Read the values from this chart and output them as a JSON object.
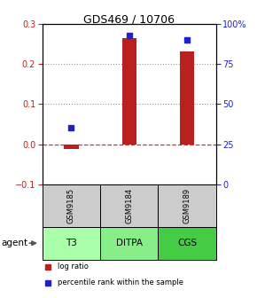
{
  "title": "GDS469 / 10706",
  "samples": [
    "GSM9185",
    "GSM9184",
    "GSM9189"
  ],
  "agents": [
    "T3",
    "DITPA",
    "CGS"
  ],
  "log_ratios": [
    -0.012,
    0.265,
    0.232
  ],
  "percentile_ranks_pct": [
    35,
    93,
    90
  ],
  "ylim_left": [
    -0.1,
    0.3
  ],
  "ylim_right": [
    0,
    100
  ],
  "yticks_left": [
    -0.1,
    0.0,
    0.1,
    0.2,
    0.3
  ],
  "yticks_right": [
    0,
    25,
    50,
    75,
    100
  ],
  "ytick_labels_right": [
    "0",
    "25",
    "50",
    "75",
    "100%"
  ],
  "bar_color": "#bb2020",
  "dot_color": "#2020cc",
  "agent_colors": [
    "#aaffaa",
    "#88ee88",
    "#44cc44"
  ],
  "sample_bg": "#cccccc",
  "grid_color": "#999999",
  "zero_line_color": "#cc3333",
  "legend_bar_label": "log ratio",
  "legend_dot_label": "percentile rank within the sample",
  "agent_label": "agent",
  "bar_width": 0.25
}
